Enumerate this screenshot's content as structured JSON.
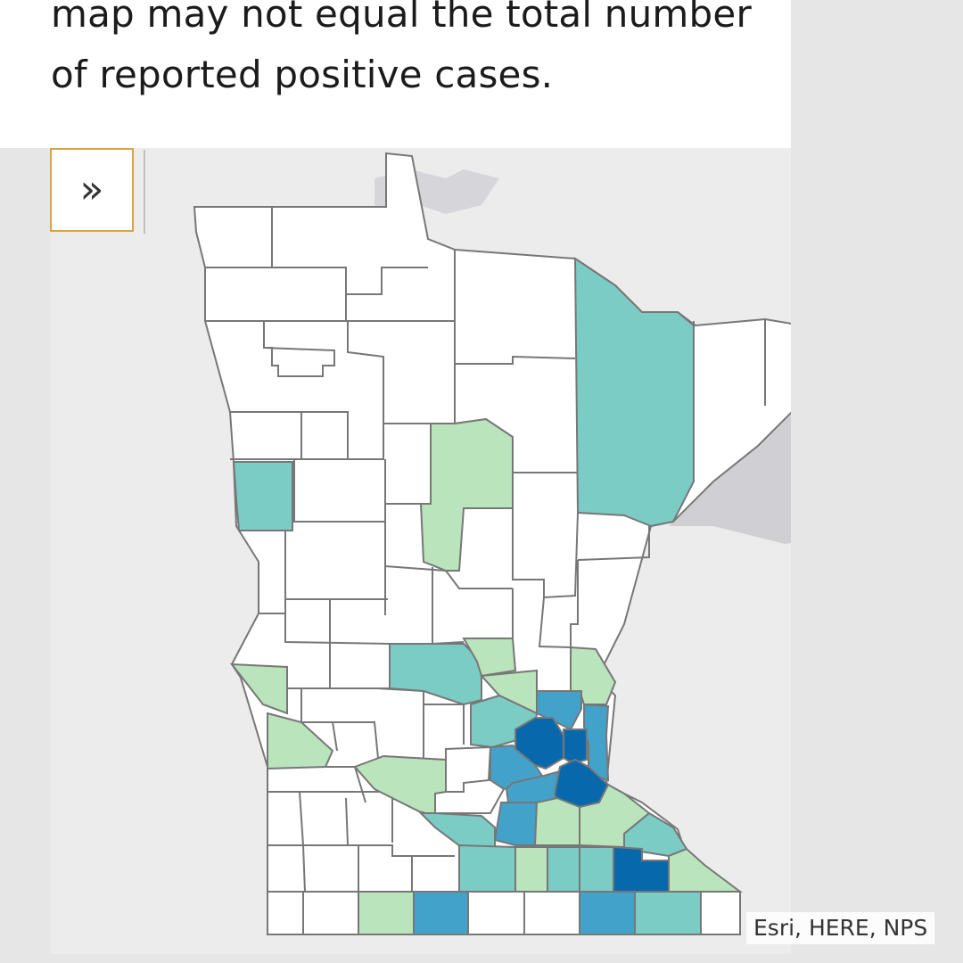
{
  "intro": {
    "lines": [
      "map may not equal the total number",
      "of reported positive cases."
    ]
  },
  "map": {
    "attribution": "Esri, HERE, NPS",
    "legend_colors": {
      "none": "#ffffff",
      "low": "#bae4bc",
      "medium": "#7bccc4",
      "high": "#43a2ca",
      "highest": "#0868ac"
    },
    "outline_color": "#777777"
  },
  "controls": {
    "expand_icon": "double-chevron-right-icon",
    "expand_glyph": "»"
  }
}
